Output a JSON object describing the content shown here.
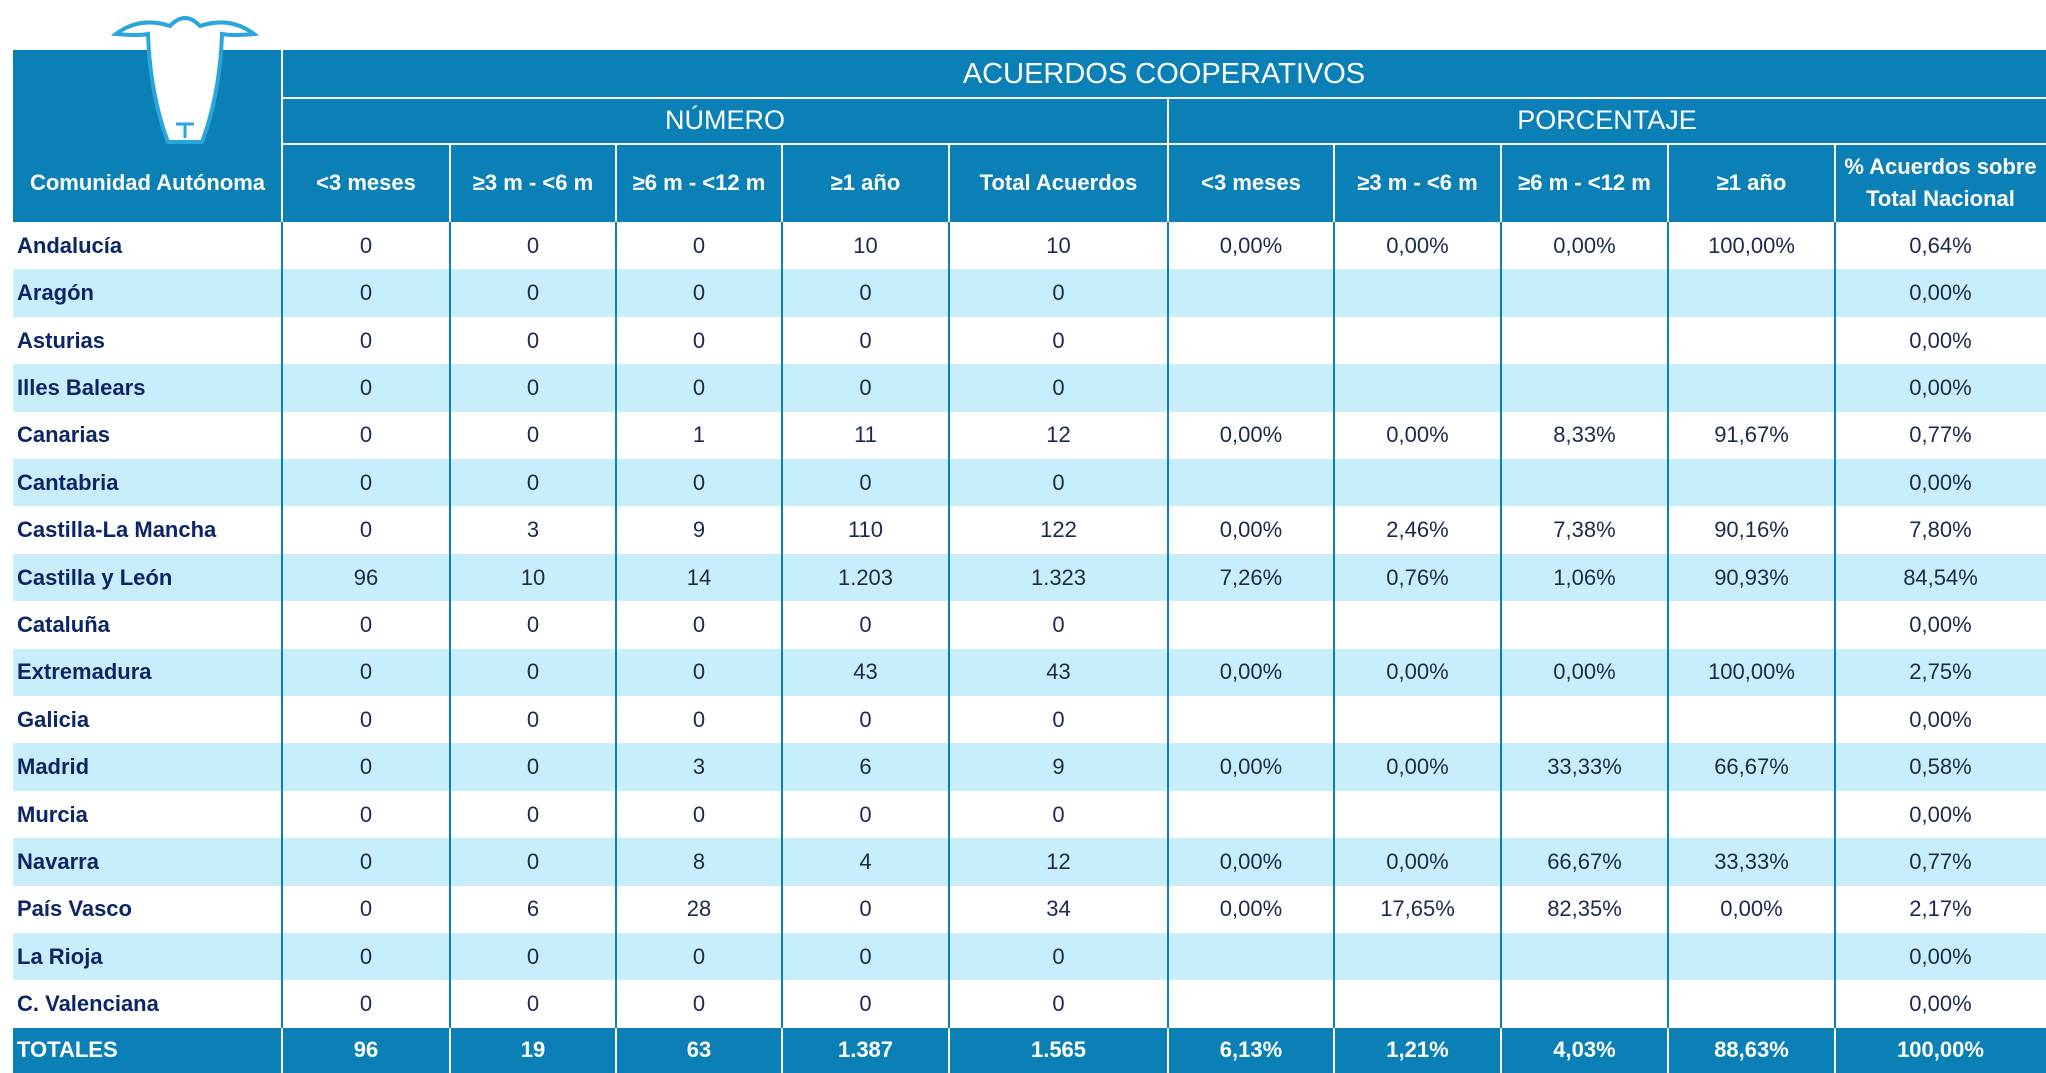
{
  "header": {
    "title": "ACUERDOS COOPERATIVOS",
    "groups": [
      "NÚMERO",
      "PORCENTAJE"
    ],
    "columns": [
      "Comunidad Autónoma",
      "<3 meses",
      "≥3 m - <6 m",
      "≥6 m - <12 m",
      "≥1 año",
      "Total Acuerdos",
      "<3 meses",
      "≥3 m - <6 m",
      "≥6 m - <12 m",
      "≥1 año",
      "% Acuerdos sobre Total Nacional"
    ]
  },
  "table": {
    "rows": [
      [
        "Andalucía",
        "0",
        "0",
        "0",
        "10",
        "10",
        "0,00%",
        "0,00%",
        "0,00%",
        "100,00%",
        "0,64%"
      ],
      [
        "Aragón",
        "0",
        "0",
        "0",
        "0",
        "0",
        null,
        null,
        null,
        null,
        "0,00%"
      ],
      [
        "Asturias",
        "0",
        "0",
        "0",
        "0",
        "0",
        null,
        null,
        null,
        null,
        "0,00%"
      ],
      [
        "Illes Balears",
        "0",
        "0",
        "0",
        "0",
        "0",
        null,
        null,
        null,
        null,
        "0,00%"
      ],
      [
        "Canarias",
        "0",
        "0",
        "1",
        "11",
        "12",
        "0,00%",
        "0,00%",
        "8,33%",
        "91,67%",
        "0,77%"
      ],
      [
        "Cantabria",
        "0",
        "0",
        "0",
        "0",
        "0",
        null,
        null,
        null,
        null,
        "0,00%"
      ],
      [
        "Castilla-La Mancha",
        "0",
        "3",
        "9",
        "110",
        "122",
        "0,00%",
        "2,46%",
        "7,38%",
        "90,16%",
        "7,80%"
      ],
      [
        "Castilla y León",
        "96",
        "10",
        "14",
        "1.203",
        "1.323",
        "7,26%",
        "0,76%",
        "1,06%",
        "90,93%",
        "84,54%"
      ],
      [
        "Cataluña",
        "0",
        "0",
        "0",
        "0",
        "0",
        null,
        null,
        null,
        null,
        "0,00%"
      ],
      [
        "Extremadura",
        "0",
        "0",
        "0",
        "43",
        "43",
        "0,00%",
        "0,00%",
        "0,00%",
        "100,00%",
        "2,75%"
      ],
      [
        "Galicia",
        "0",
        "0",
        "0",
        "0",
        "0",
        null,
        null,
        null,
        null,
        "0,00%"
      ],
      [
        "Madrid",
        "0",
        "0",
        "3",
        "6",
        "9",
        "0,00%",
        "0,00%",
        "33,33%",
        "66,67%",
        "0,58%"
      ],
      [
        "Murcia",
        "0",
        "0",
        "0",
        "0",
        "0",
        null,
        null,
        null,
        null,
        "0,00%"
      ],
      [
        "Navarra",
        "0",
        "0",
        "8",
        "4",
        "12",
        "0,00%",
        "0,00%",
        "66,67%",
        "33,33%",
        "0,77%"
      ],
      [
        "País Vasco",
        "0",
        "6",
        "28",
        "0",
        "34",
        "0,00%",
        "17,65%",
        "82,35%",
        "0,00%",
        "2,17%"
      ],
      [
        "La Rioja",
        "0",
        "0",
        "0",
        "0",
        "0",
        null,
        null,
        null,
        null,
        "0,00%"
      ],
      [
        "C. Valenciana",
        "0",
        "0",
        "0",
        "0",
        "0",
        null,
        null,
        null,
        null,
        "0,00%"
      ]
    ],
    "totals": [
      "TOTALES",
      "96",
      "19",
      "63",
      "1.387",
      "1.565",
      "6,13%",
      "1,21%",
      "4,03%",
      "88,63%",
      "100,00%"
    ]
  }
}
